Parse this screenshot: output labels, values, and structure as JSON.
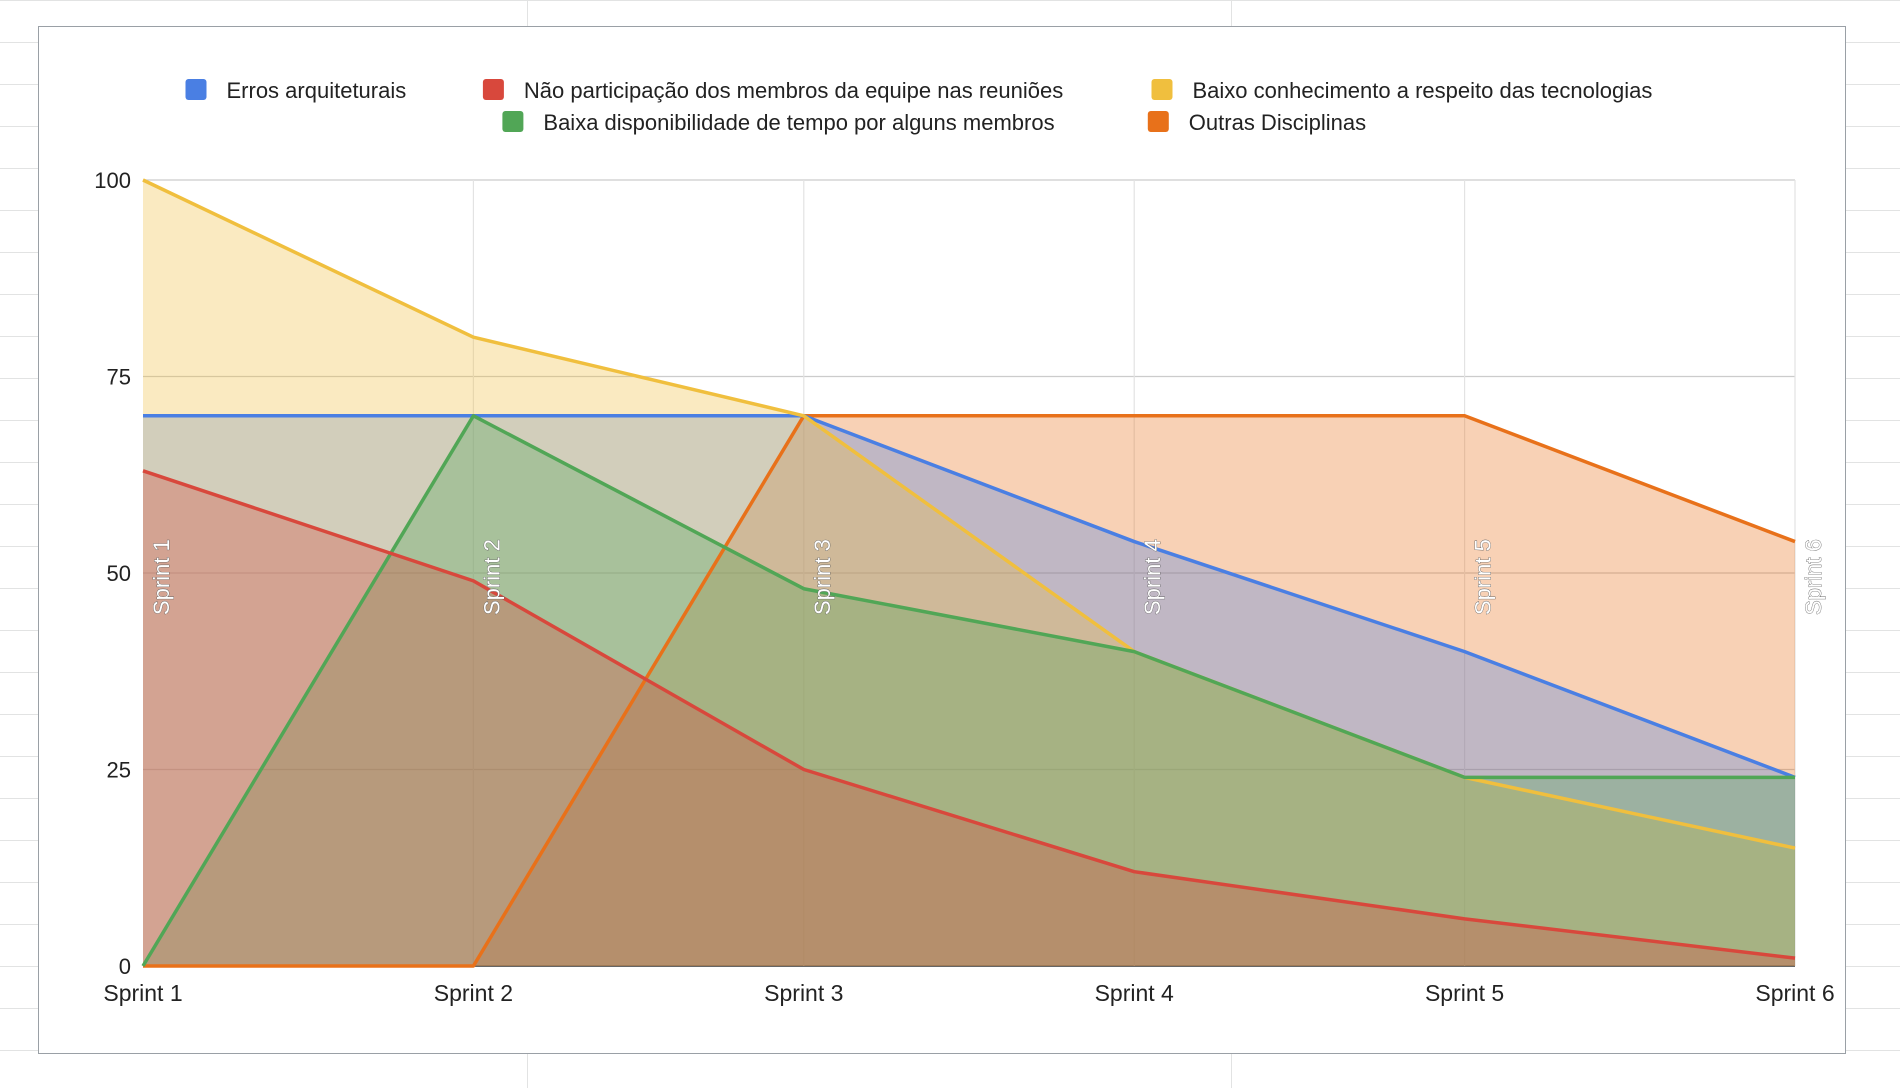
{
  "chart_data": {
    "type": "area",
    "categories": [
      "Sprint 1",
      "Sprint 2",
      "Sprint 3",
      "Sprint 4",
      "Sprint 5",
      "Sprint 6"
    ],
    "series": [
      {
        "name": "Outras Disciplinas",
        "color": "#e8711a",
        "values": [
          0,
          0,
          70,
          70,
          70,
          54
        ]
      },
      {
        "name": "Erros arquiteturais",
        "color": "#4a7fe3",
        "values": [
          70,
          70,
          70,
          54,
          40,
          24
        ]
      },
      {
        "name": "Baixo conhecimento a respeito das tecnologias",
        "color": "#f0bf3e",
        "values": [
          100,
          80,
          70,
          40,
          24,
          15
        ]
      },
      {
        "name": "Baixa disponibilidade de tempo por alguns membros",
        "color": "#51a656",
        "values": [
          0,
          70,
          48,
          40,
          24,
          24
        ]
      },
      {
        "name": "Não participação dos membros da equipe nas reuniões",
        "color": "#d8483c",
        "values": [
          63,
          49,
          25,
          12,
          6,
          1
        ]
      }
    ],
    "legend_order": [
      "Erros arquiteturais",
      "Não participação dos membros da equipe nas reuniões",
      "Baixo conhecimento a respeito das tecnologias",
      "Baixa disponibilidade de tempo por alguns membros",
      "Outras Disciplinas"
    ],
    "y_ticks": [
      0,
      25,
      50,
      75,
      100
    ],
    "ylim": [
      0,
      100
    ],
    "legend_position": "top",
    "grid": true,
    "title": "",
    "xlabel": "",
    "ylabel": ""
  }
}
